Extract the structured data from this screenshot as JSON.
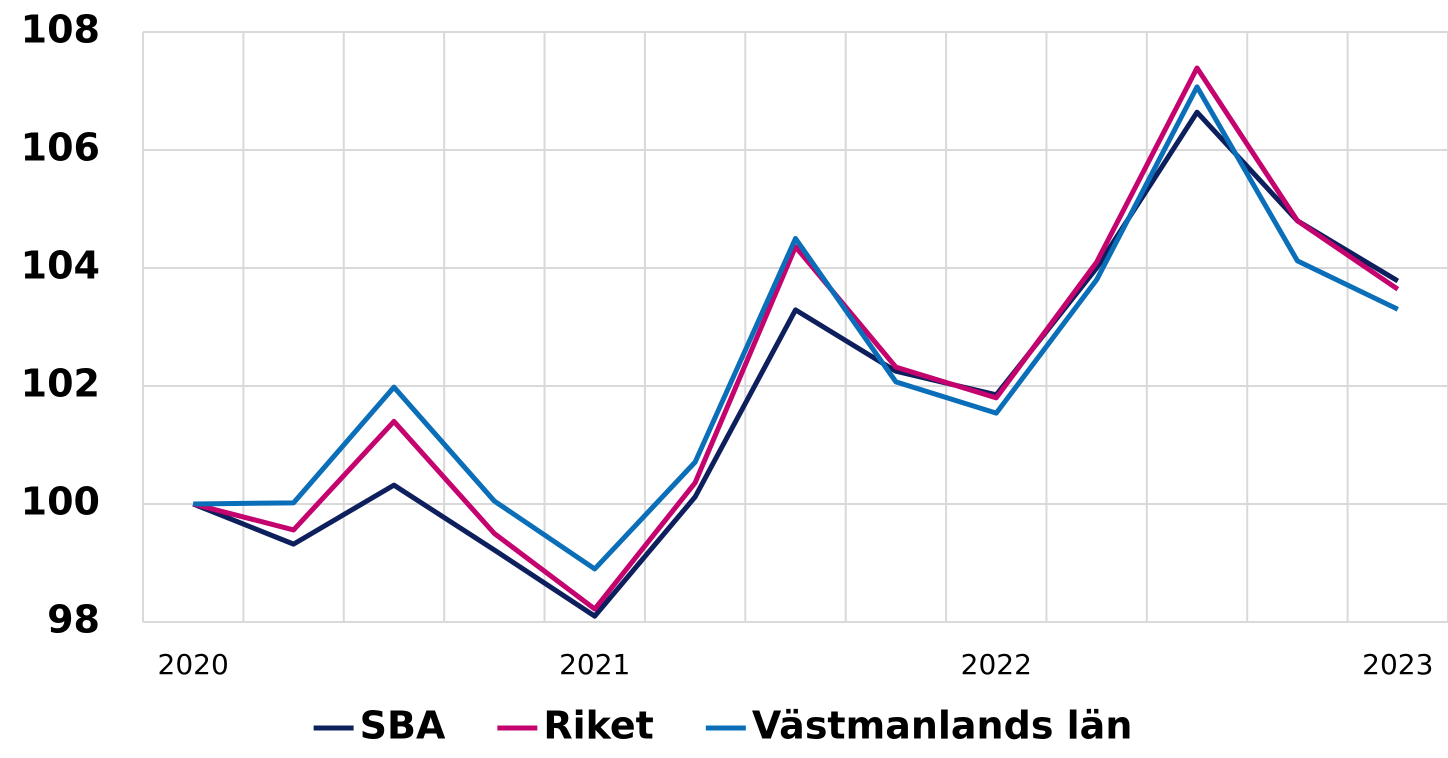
{
  "chart_data": {
    "type": "line",
    "categories": [
      "2020",
      null,
      null,
      null,
      "2021",
      null,
      null,
      null,
      "2022",
      null,
      null,
      null,
      "2023"
    ],
    "series": [
      {
        "name": "SBA",
        "color": "#0d1f5c",
        "values": [
          100,
          99.32,
          100.32,
          99.22,
          98.1,
          100.12,
          103.29,
          102.25,
          101.85,
          104.0,
          106.64,
          104.8,
          103.78
        ]
      },
      {
        "name": "Riket",
        "color": "#c4036e",
        "values": [
          100,
          99.56,
          101.4,
          99.5,
          98.22,
          100.36,
          104.36,
          102.32,
          101.8,
          104.1,
          107.39,
          104.8,
          103.64
        ]
      },
      {
        "name": "Västmanlands län",
        "color": "#0a6fb8",
        "values": [
          100,
          100.02,
          101.98,
          100.05,
          98.9,
          100.71,
          104.5,
          102.07,
          101.54,
          103.8,
          107.07,
          104.12,
          103.3
        ]
      }
    ],
    "ylim": [
      98,
      108
    ],
    "yticks": [
      98,
      100,
      102,
      104,
      106,
      108
    ],
    "grid": true,
    "legend": "bottom"
  }
}
